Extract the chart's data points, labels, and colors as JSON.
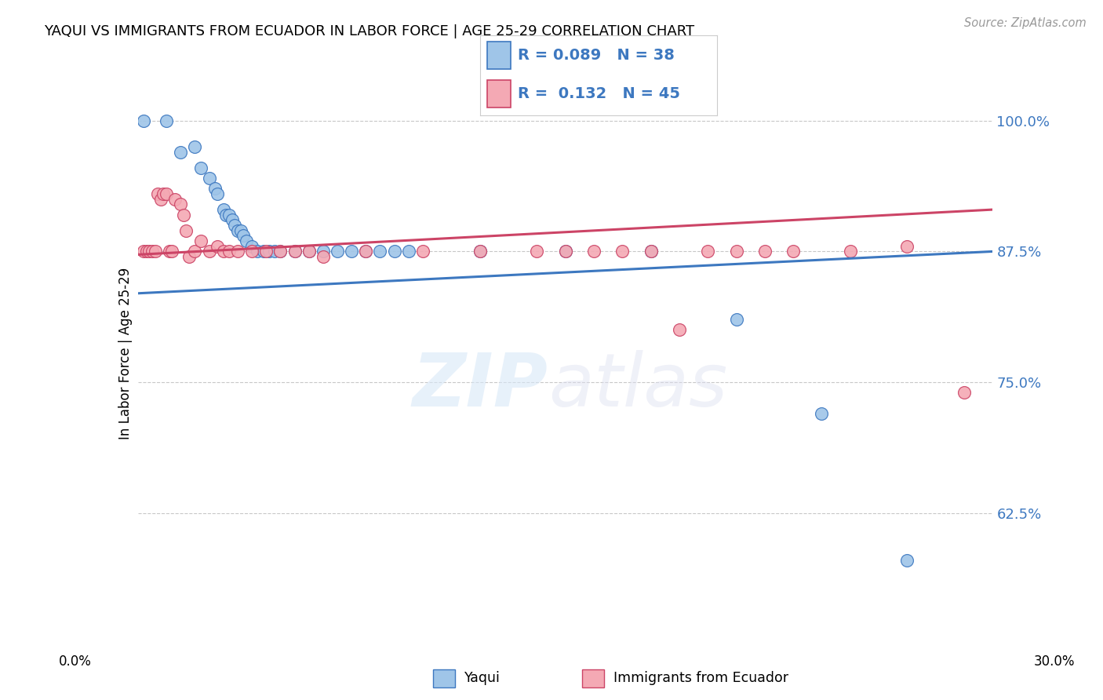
{
  "title": "YAQUI VS IMMIGRANTS FROM ECUADOR IN LABOR FORCE | AGE 25-29 CORRELATION CHART",
  "source": "Source: ZipAtlas.com",
  "ylabel": "In Labor Force | Age 25-29",
  "yticks": [
    0.625,
    0.75,
    0.875,
    1.0
  ],
  "ytick_labels": [
    "62.5%",
    "75.0%",
    "87.5%",
    "100.0%"
  ],
  "xmin": 0.0,
  "xmax": 0.3,
  "ymin": 0.52,
  "ymax": 1.035,
  "legend_label1": "Yaqui",
  "legend_label2": "Immigrants from Ecuador",
  "R1": "0.089",
  "N1": "38",
  "R2": "0.132",
  "N2": "45",
  "color_blue": "#9fc5e8",
  "color_pink": "#f4a9b4",
  "color_line_blue": "#3d78c0",
  "color_line_pink": "#cc4466",
  "blue_x": [
    0.002,
    0.01,
    0.015,
    0.02,
    0.022,
    0.025,
    0.027,
    0.028,
    0.03,
    0.031,
    0.032,
    0.033,
    0.034,
    0.035,
    0.036,
    0.037,
    0.038,
    0.04,
    0.042,
    0.044,
    0.046,
    0.048,
    0.05,
    0.055,
    0.06,
    0.065,
    0.07,
    0.075,
    0.08,
    0.085,
    0.09,
    0.095,
    0.12,
    0.15,
    0.18,
    0.21,
    0.24,
    0.27
  ],
  "blue_y": [
    1.0,
    1.0,
    0.97,
    0.975,
    0.955,
    0.945,
    0.935,
    0.93,
    0.915,
    0.91,
    0.91,
    0.905,
    0.9,
    0.895,
    0.895,
    0.89,
    0.885,
    0.88,
    0.875,
    0.875,
    0.875,
    0.875,
    0.875,
    0.875,
    0.875,
    0.875,
    0.875,
    0.875,
    0.875,
    0.875,
    0.875,
    0.875,
    0.875,
    0.875,
    0.875,
    0.81,
    0.72,
    0.58
  ],
  "pink_x": [
    0.002,
    0.003,
    0.004,
    0.005,
    0.006,
    0.007,
    0.008,
    0.009,
    0.01,
    0.011,
    0.012,
    0.013,
    0.015,
    0.016,
    0.017,
    0.018,
    0.02,
    0.022,
    0.025,
    0.028,
    0.03,
    0.032,
    0.035,
    0.04,
    0.045,
    0.05,
    0.055,
    0.06,
    0.065,
    0.08,
    0.1,
    0.12,
    0.14,
    0.15,
    0.16,
    0.17,
    0.18,
    0.19,
    0.2,
    0.21,
    0.22,
    0.23,
    0.25,
    0.27,
    0.29
  ],
  "pink_y": [
    0.875,
    0.875,
    0.875,
    0.875,
    0.875,
    0.93,
    0.925,
    0.93,
    0.93,
    0.875,
    0.875,
    0.925,
    0.92,
    0.91,
    0.895,
    0.87,
    0.875,
    0.885,
    0.875,
    0.88,
    0.875,
    0.875,
    0.875,
    0.875,
    0.875,
    0.875,
    0.875,
    0.875,
    0.87,
    0.875,
    0.875,
    0.875,
    0.875,
    0.875,
    0.875,
    0.875,
    0.875,
    0.8,
    0.875,
    0.875,
    0.875,
    0.875,
    0.875,
    0.88,
    0.74
  ],
  "background_color": "#ffffff",
  "grid_color": "#c8c8c8",
  "title_fontsize": 13,
  "axis_label_fontsize": 12,
  "tick_fontsize": 13,
  "legend_fontsize": 14
}
